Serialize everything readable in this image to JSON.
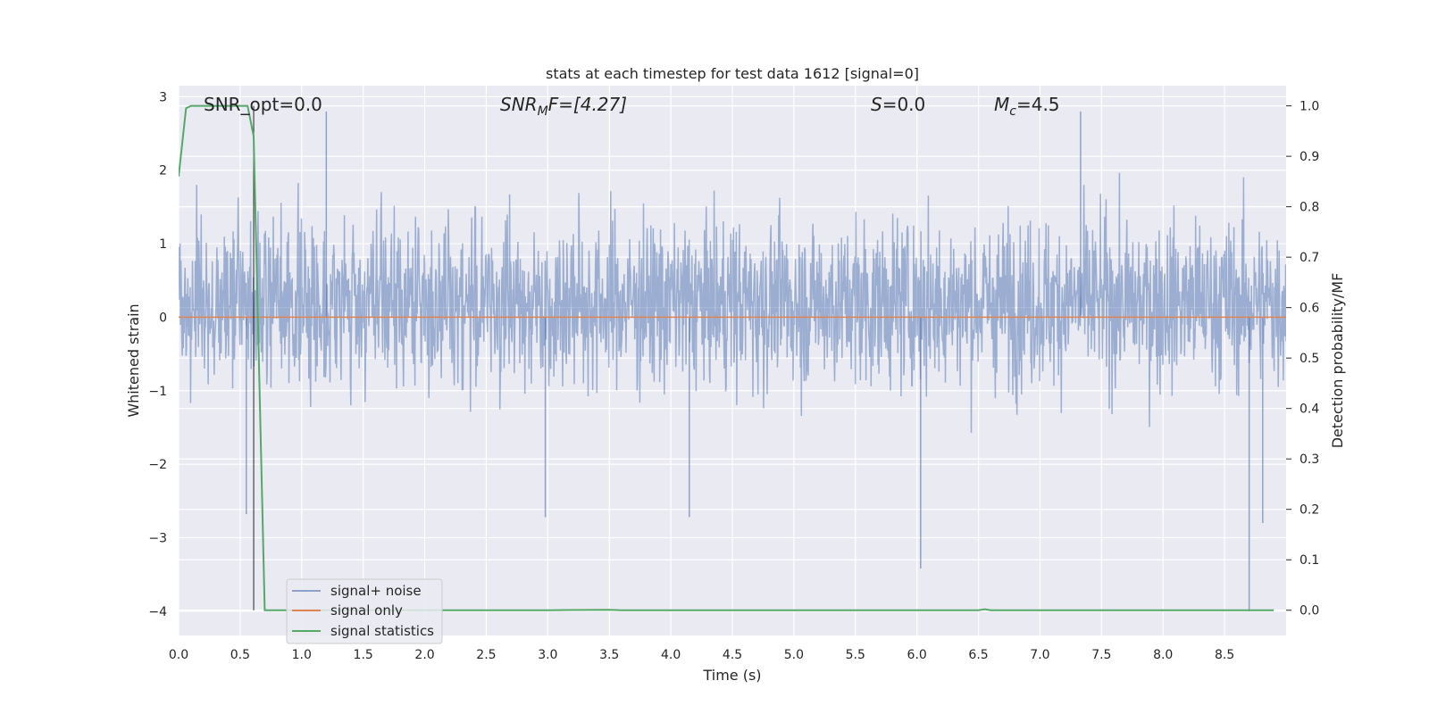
{
  "chart_data": {
    "type": "line",
    "title": "stats at each timestep for test data 1612 [signal=0]",
    "xlabel": "Time (s)",
    "ylabel_left": "Whitened strain",
    "ylabel_right": "Detection probability/MF",
    "xlim": [
      0.0,
      9.0
    ],
    "ylim_left": [
      -4.33,
      3.15
    ],
    "ylim_right": [
      -0.05,
      1.04
    ],
    "x_ticks": [
      "0.0",
      "0.5",
      "1.0",
      "1.5",
      "2.0",
      "2.5",
      "3.0",
      "3.5",
      "4.0",
      "4.5",
      "5.0",
      "5.5",
      "6.0",
      "6.5",
      "7.0",
      "7.5",
      "8.0",
      "8.5"
    ],
    "x_tick_values": [
      0.0,
      0.5,
      1.0,
      1.5,
      2.0,
      2.5,
      3.0,
      3.5,
      4.0,
      4.5,
      5.0,
      5.5,
      6.0,
      6.5,
      7.0,
      7.5,
      8.0,
      8.5
    ],
    "y_ticks_left": [
      "3",
      "2",
      "1",
      "0",
      "−1",
      "−2",
      "−3",
      "−4"
    ],
    "y_tick_values_left": [
      3,
      2,
      1,
      0,
      -1,
      -2,
      -3,
      -4
    ],
    "y_ticks_right": [
      "1.0",
      "0.9",
      "0.8",
      "0.7",
      "0.6",
      "0.5",
      "0.4",
      "0.3",
      "0.2",
      "0.1",
      "0.0"
    ],
    "y_tick_values_right": [
      1.0,
      0.9,
      0.8,
      0.7,
      0.6,
      0.5,
      0.4,
      0.3,
      0.2,
      0.1,
      0.0
    ],
    "grid": true,
    "legend_position": "lower-left",
    "annotations": {
      "snr_opt": "SNR_opt=0.0",
      "snr_mf_prefix": "SNR",
      "snr_mf_sub": "M",
      "snr_mf_suffix": "F=[4.27]",
      "s_var": "S",
      "s_value": "=0.0",
      "mc_var": "M",
      "mc_sub": "c",
      "mc_value": "=4.5"
    },
    "series": [
      {
        "name": "signal+ noise",
        "color": "#4c72b0",
        "axis": "left",
        "kind": "noise",
        "description_values": {
          "band": [
            -1.3,
            1.6
          ],
          "peaks_max": 2.8,
          "peaks_min": -4.0
        },
        "spikes": [
          {
            "x": 0.55,
            "y": -2.68
          },
          {
            "x": 1.2,
            "y": 2.8
          },
          {
            "x": 2.98,
            "y": -2.72
          },
          {
            "x": 4.15,
            "y": -2.72
          },
          {
            "x": 6.03,
            "y": -3.42
          },
          {
            "x": 7.33,
            "y": 2.8
          },
          {
            "x": 8.7,
            "y": -4.0
          },
          {
            "x": 8.81,
            "y": -2.8
          }
        ]
      },
      {
        "name": "signal only",
        "color": "#dd8452",
        "axis": "left",
        "x": [
          0.0,
          9.0
        ],
        "y": [
          0.0,
          0.0
        ]
      },
      {
        "name": "signal statistics",
        "color": "#55a868",
        "axis": "right",
        "x": [
          0.0,
          0.06,
          0.1,
          0.2,
          0.3,
          0.4,
          0.5,
          0.56,
          0.61,
          0.7,
          1.0,
          2.0,
          3.0,
          3.5,
          3.6,
          4.0,
          5.0,
          6.0,
          6.5,
          6.55,
          6.6,
          7.0,
          8.0,
          8.9
        ],
        "y": [
          0.86,
          0.995,
          1.0,
          1.0,
          1.0,
          1.0,
          1.0,
          1.0,
          0.94,
          0.0,
          0.0,
          0.0,
          0.0,
          0.001,
          0.0,
          0.0,
          0.0,
          0.0,
          0.0,
          0.002,
          0.0,
          0.0,
          0.0,
          0.0
        ]
      }
    ],
    "vertical_line": {
      "x": 0.61,
      "color": "#000000"
    }
  }
}
